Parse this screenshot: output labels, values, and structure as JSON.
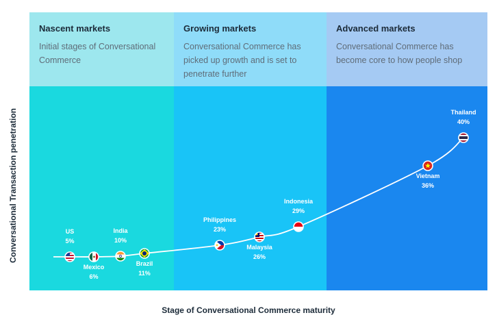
{
  "chart_data": {
    "type": "line",
    "ylabel": "Conversational Transaction penetration",
    "xlabel": "Stage of Conversational Commerce maturity",
    "stages": [
      {
        "name": "Nascent markets",
        "description": "Initial stages of Conversational Commerce"
      },
      {
        "name": "Growing markets",
        "description": "Conversational Commerce has picked up growth and is set to penetrate further"
      },
      {
        "name": "Advanced markets",
        "description": "Conversational Commerce has become core to how people shop"
      }
    ],
    "points": [
      {
        "country": "US",
        "value": "5%",
        "y": 5,
        "stage": "Nascent markets",
        "flag": "us-flag-icon"
      },
      {
        "country": "Mexico",
        "value": "6%",
        "y": 6,
        "stage": "Nascent markets",
        "flag": "mexico-flag-icon"
      },
      {
        "country": "India",
        "value": "10%",
        "y": 10,
        "stage": "Nascent markets",
        "flag": "india-flag-icon"
      },
      {
        "country": "Brazil",
        "value": "11%",
        "y": 11,
        "stage": "Nascent markets",
        "flag": "brazil-flag-icon"
      },
      {
        "country": "Philippines",
        "value": "23%",
        "y": 23,
        "stage": "Growing markets",
        "flag": "philippines-flag-icon"
      },
      {
        "country": "Malaysia",
        "value": "26%",
        "y": 26,
        "stage": "Growing markets",
        "flag": "malaysia-flag-icon"
      },
      {
        "country": "Indonesia",
        "value": "29%",
        "y": 29,
        "stage": "Growing markets",
        "flag": "indonesia-flag-icon"
      },
      {
        "country": "Vietnam",
        "value": "36%",
        "y": 36,
        "stage": "Advanced markets",
        "flag": "vietnam-flag-icon"
      },
      {
        "country": "Thailand",
        "value": "40%",
        "y": 40,
        "stage": "Advanced markets",
        "flag": "thailand-flag-icon"
      }
    ],
    "colors": {
      "nascent_header": "#9de7ee",
      "growing_header": "#8fdcf9",
      "advanced_header": "#a5caf3",
      "nascent": "#1ad9df",
      "growing": "#19c4f7",
      "advanced": "#1a87ef",
      "curve": "#ffffff"
    }
  }
}
